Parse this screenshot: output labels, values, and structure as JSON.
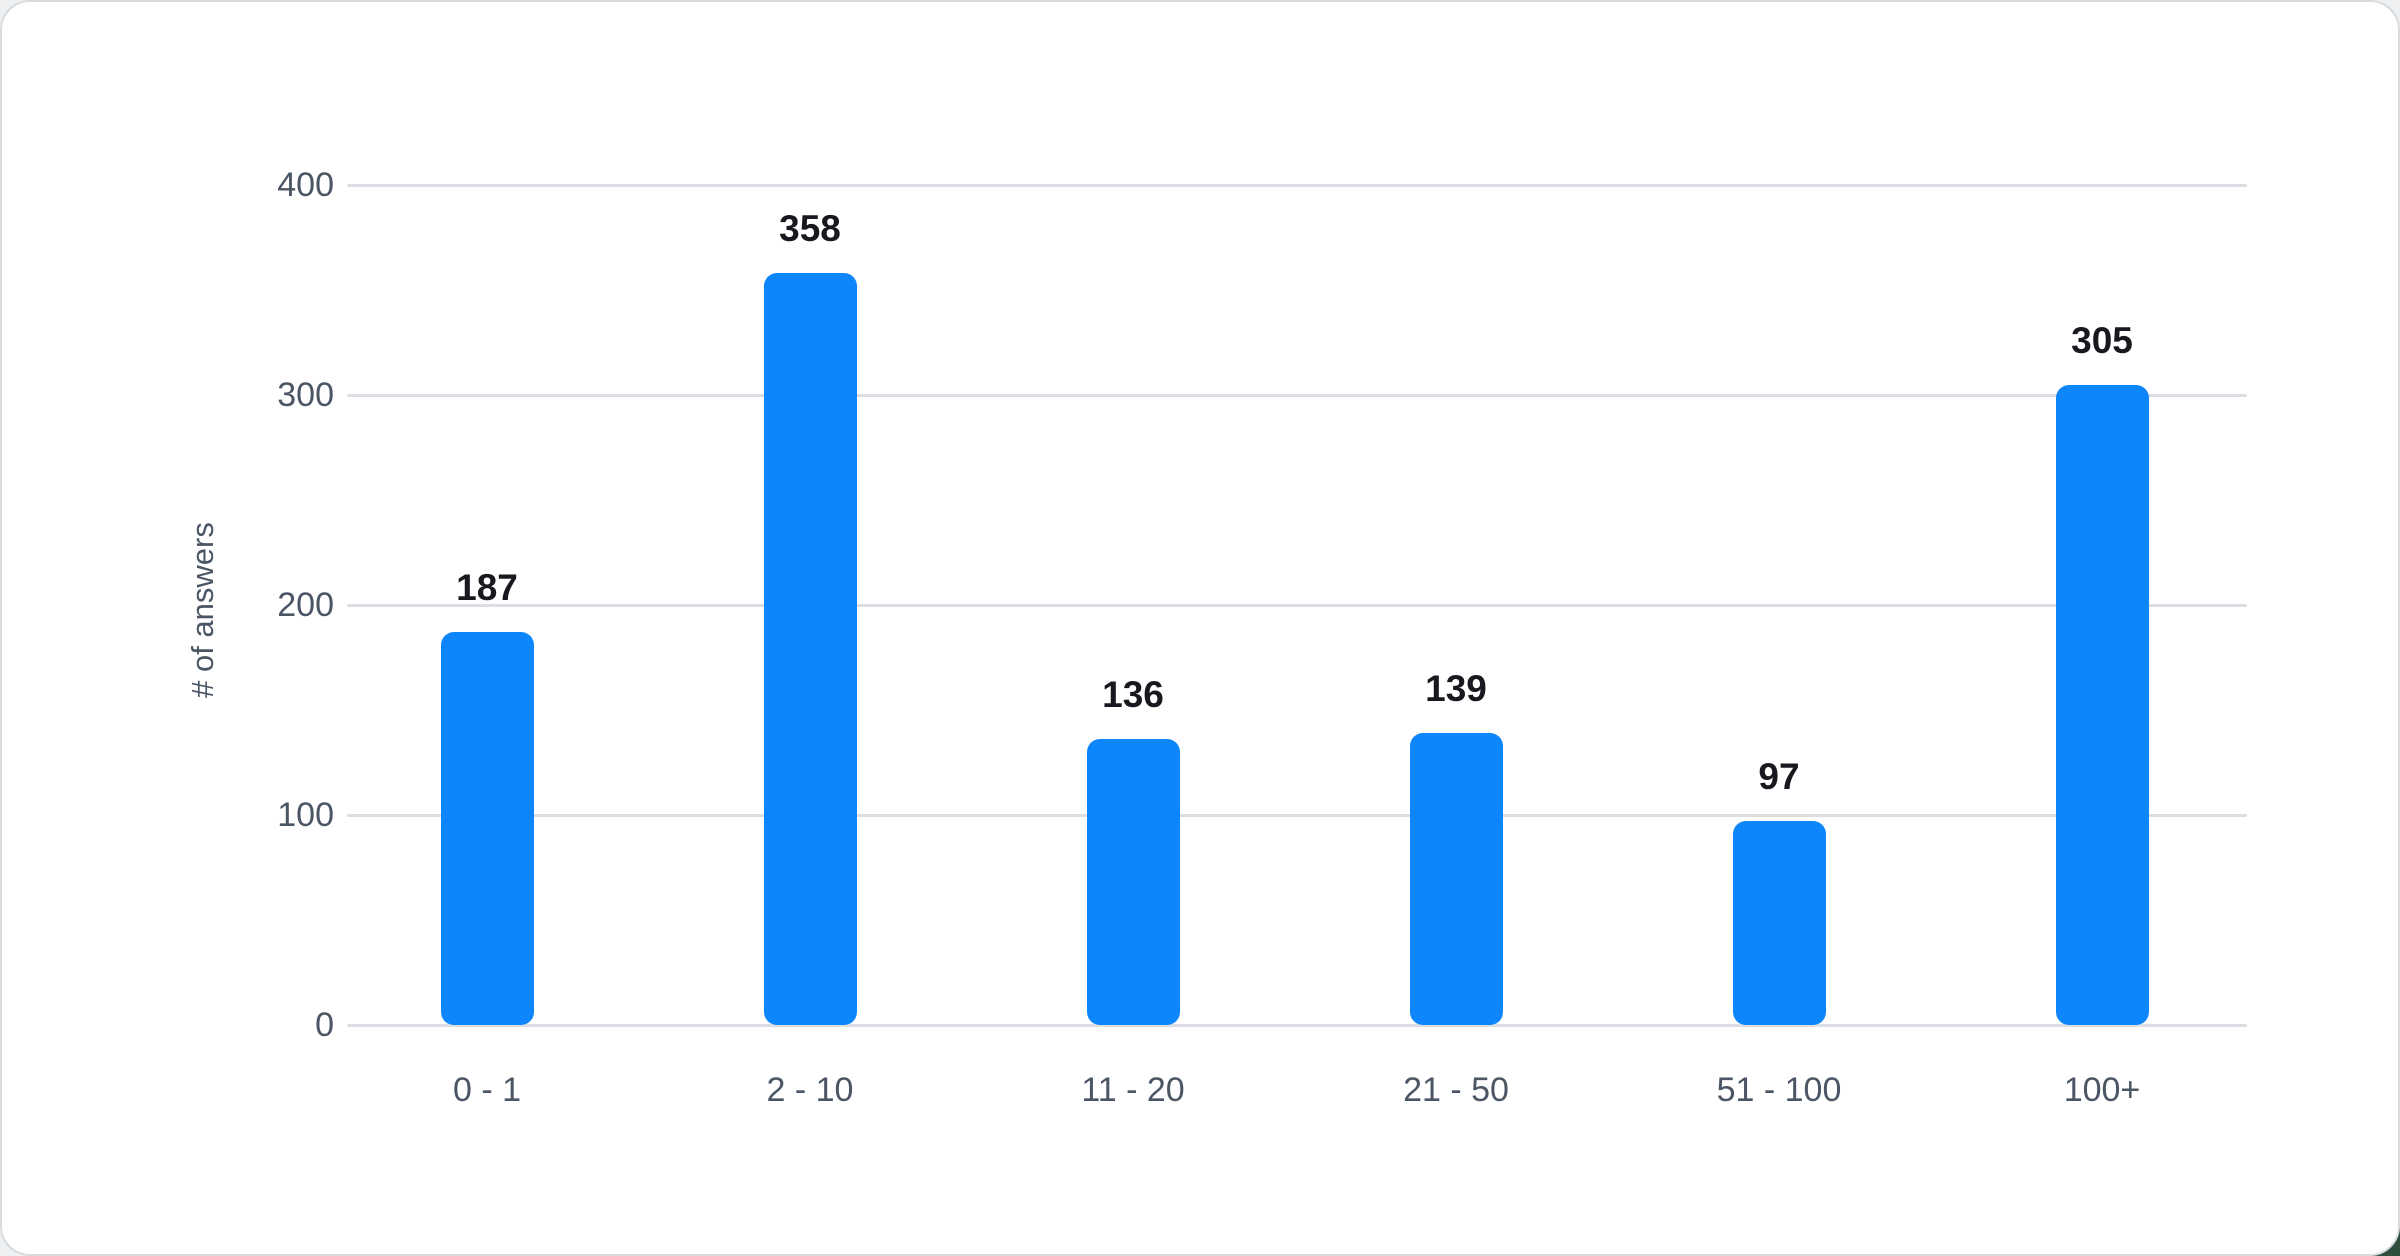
{
  "page": {
    "background_color": "#eef0f1",
    "card_background": "#ffffff",
    "card_border_color": "#d8dcdf",
    "corner_accent_color": "#2f4f3c"
  },
  "chart_data": {
    "type": "bar",
    "title": "",
    "categories": [
      "0 - 1",
      "2 - 10",
      "11 - 20",
      "21 - 50",
      "51 - 100",
      "100+"
    ],
    "values": [
      187,
      358,
      136,
      139,
      97,
      305
    ],
    "value_labels": [
      "187",
      "358",
      "136",
      "139",
      "97",
      "305"
    ],
    "xlabel": "",
    "ylabel": "# of answers",
    "ylim": [
      0,
      400
    ],
    "yticks": [
      0,
      100,
      200,
      300,
      400
    ],
    "ytick_labels": [
      "0",
      "100",
      "200",
      "300",
      "400"
    ],
    "grid": "horizontal gridlines on",
    "legend": "none",
    "bar_color": "#0d85fb",
    "gridline_color": "#dbdee2",
    "axis_text_color": "#4b5665",
    "value_label_color": "#17191e"
  }
}
